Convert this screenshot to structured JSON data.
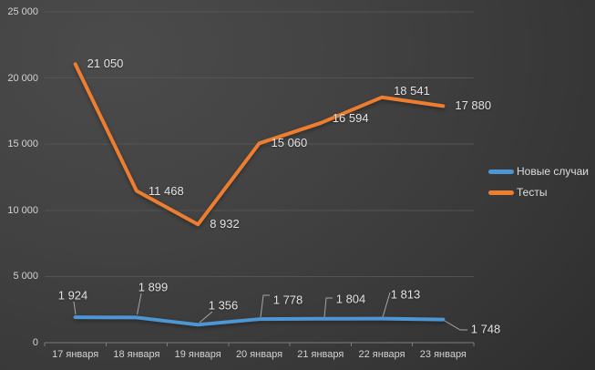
{
  "chart_data": {
    "type": "line",
    "title": "",
    "categories": [
      "17 января",
      "18 января",
      "19 января",
      "20 января",
      "21 января",
      "22 января",
      "23 января"
    ],
    "series": [
      {
        "name": "Новые случаи",
        "color": "#4E95D3",
        "values": [
          1924,
          1899,
          1356,
          1778,
          1804,
          1813,
          1748
        ],
        "labels": [
          "1 924",
          "1 899",
          "1 356",
          "1 778",
          "1 804",
          "1 813",
          "1 748"
        ]
      },
      {
        "name": "Тесты",
        "color": "#ED7D31",
        "values": [
          21050,
          11468,
          8932,
          15060,
          16594,
          18541,
          17880
        ],
        "labels": [
          "21 050",
          "11 468",
          "8 932",
          "15 060",
          "16 594",
          "18 541",
          "17 880"
        ]
      }
    ],
    "xlabel": "",
    "ylabel": "",
    "y_axis": {
      "min": 0,
      "max": 25000,
      "step": 5000,
      "tick_labels": [
        "0",
        "5 000",
        "10 000",
        "15 000",
        "20 000",
        "25 000"
      ]
    },
    "grid": true,
    "data_labels": true,
    "legend_position": "right",
    "colors": {
      "background_light": "#4b4b4b",
      "background_dark": "#222222",
      "gridline": "#545454",
      "axis_line": "#7d7d7d",
      "leader_line": "#a6a6a6",
      "label_text": "#e2e2e2",
      "axis_text": "#d2d2d2"
    }
  }
}
